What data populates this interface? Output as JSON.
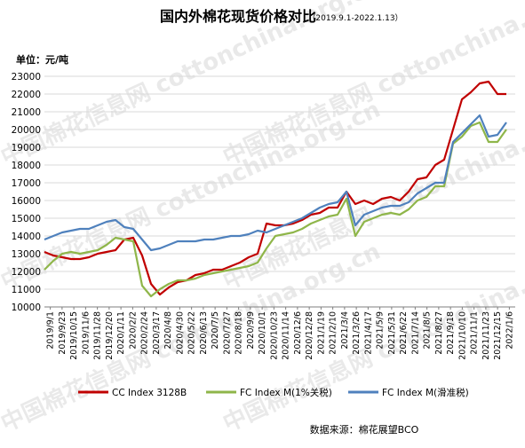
{
  "chart_data": {
    "type": "line",
    "title": "国内外棉花现货价格对比",
    "subtitle": "（2019.9.1-2022.1.13）",
    "unit_label": "单位：元/吨",
    "source": "数据来源：棉花展望BCO",
    "watermark": "中国棉花信息网 cottonchina.org.cn",
    "ylim": [
      10000,
      23000
    ],
    "y_ticks": [
      10000,
      11000,
      12000,
      13000,
      14000,
      15000,
      16000,
      17000,
      18000,
      19000,
      20000,
      21000,
      22000,
      23000
    ],
    "x_tick_labels": [
      "2019/9/1",
      "2019/9/23",
      "2019/10/15",
      "2019/11/6",
      "2019/11/28",
      "2019/12/20",
      "2020/1/11",
      "2020/2/2",
      "2020/2/24",
      "2020/3/17",
      "2020/4/8",
      "2020/4/30",
      "2020/5/22",
      "2020/6/13",
      "2020/7/5",
      "2020/7/27",
      "2020/8/18",
      "2020/9/9",
      "2020/10/1",
      "2020/10/23",
      "2020/11/14",
      "2020/12/6",
      "2020/12/28",
      "2021/1/19",
      "2021/2/10",
      "2021/3/4",
      "2021/3/26",
      "2021/4/17",
      "2021/5/9",
      "2021/5/31",
      "2021/6/22",
      "2021/7/14",
      "2021/8/5",
      "2021/8/27",
      "2021/9/18",
      "2021/10/10",
      "2021/11/1",
      "2021/11/23",
      "2021/12/15",
      "2022/1/6"
    ],
    "grid": "horizontal",
    "legend_position": "bottom",
    "series": [
      {
        "name": "CC Index 3128B",
        "color": "#c00000",
        "values": [
          13100,
          12900,
          12800,
          12700,
          12700,
          12800,
          13000,
          13100,
          13200,
          13800,
          13900,
          12900,
          11300,
          10700,
          11100,
          11400,
          11500,
          11800,
          11900,
          12100,
          12100,
          12300,
          12500,
          12800,
          13000,
          14700,
          14600,
          14600,
          14700,
          14900,
          15200,
          15300,
          15600,
          15600,
          16500,
          15800,
          16000,
          15800,
          16100,
          16200,
          16000,
          16500,
          17200,
          17300,
          18000,
          18300,
          20000,
          21700,
          22100,
          22600,
          22700,
          22000,
          22000
        ]
      },
      {
        "name": "FC Index M(1%关税)",
        "color": "#8fb64a",
        "values": [
          12100,
          12600,
          13000,
          13100,
          13000,
          13100,
          13200,
          13500,
          13900,
          13800,
          13700,
          11200,
          10600,
          11000,
          11300,
          11500,
          11500,
          11600,
          11800,
          11900,
          12000,
          12100,
          12200,
          12300,
          12500,
          13300,
          14000,
          14100,
          14200,
          14400,
          14700,
          14900,
          15100,
          15200,
          16100,
          14000,
          14800,
          15000,
          15200,
          15300,
          15200,
          15500,
          16000,
          16200,
          16800,
          16800,
          19200,
          19600,
          20200,
          20400,
          19300,
          19300,
          20000
        ]
      },
      {
        "name": "FC Index M(滑准税)",
        "color": "#4f81bd",
        "values": [
          13800,
          14000,
          14200,
          14300,
          14400,
          14400,
          14600,
          14800,
          14900,
          14500,
          14400,
          13800,
          13200,
          13300,
          13500,
          13700,
          13700,
          13700,
          13800,
          13800,
          13900,
          14000,
          14000,
          14100,
          14300,
          14200,
          14400,
          14600,
          14800,
          15000,
          15300,
          15600,
          15800,
          15900,
          16500,
          14600,
          15200,
          15400,
          15600,
          15700,
          15700,
          15900,
          16400,
          16700,
          17000,
          17000,
          19300,
          19800,
          20300,
          20800,
          19600,
          19700,
          20400
        ]
      }
    ]
  }
}
